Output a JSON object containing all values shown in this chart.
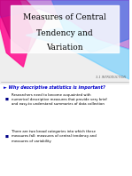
{
  "title_line1": "Measures of Central",
  "title_line2": "Tendency and",
  "title_line3": "Variation",
  "section_label": "3.1 INTRODUCTION",
  "question": "► Why descriptive statistics is important?",
  "bullet1_title": "Researchers need to become acquainted with",
  "bullet1_text": "numerical descriptive measures that provide very brief\nand easy-to understand summaries of data collection",
  "bullet2_title": "There are two broad categories into which these",
  "bullet2_text": "measures fall: measures of central tendency and\nmeasures of variability",
  "bg_color": "#ffffff",
  "title_color": "#000000",
  "question_color": "#0000cc",
  "bullet_color": "#000000",
  "section_color": "#666666",
  "wave_pink": "#ff1493",
  "wave_blue": "#00bfff",
  "wave_purple": "#9933cc",
  "wave_lblue": "#66ccff"
}
